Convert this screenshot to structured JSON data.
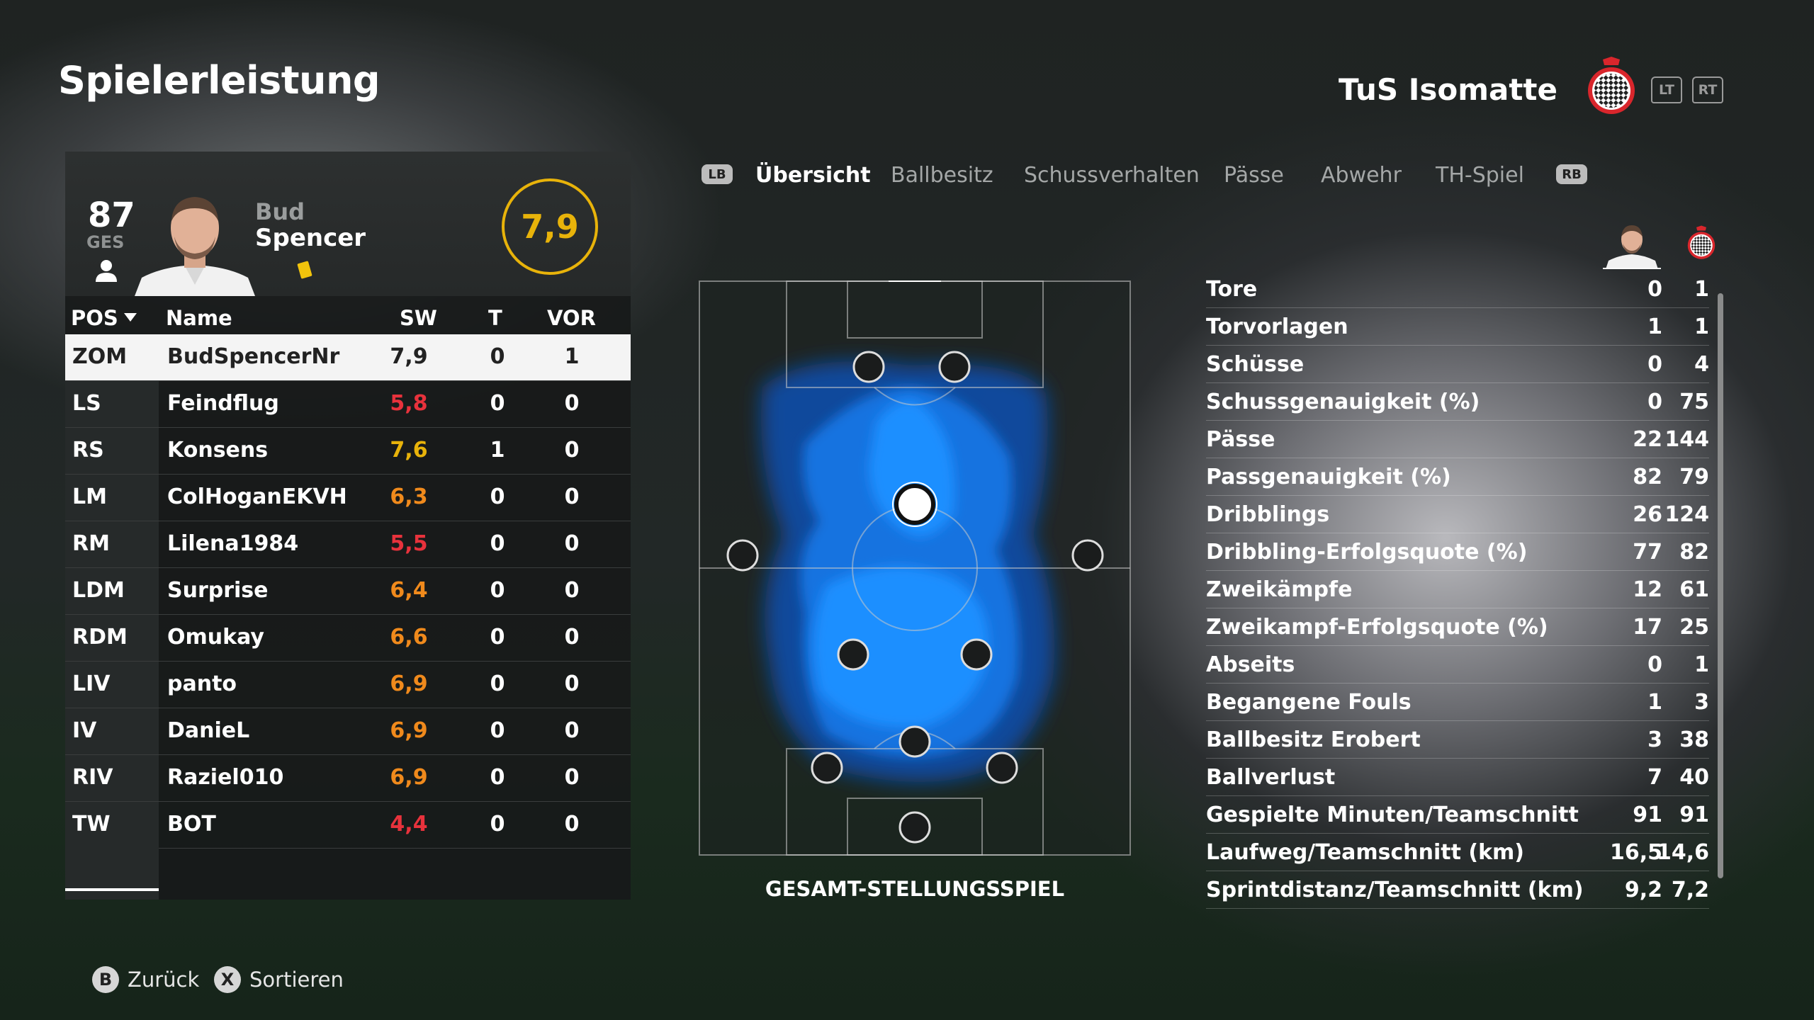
{
  "header": {
    "title": "Spielerleistung",
    "team_name": "TuS Isomatte",
    "lt": "LT",
    "rt": "RT"
  },
  "player_card": {
    "overall": "87",
    "overall_label": "GES",
    "first_name": "Bud",
    "last_name": "Spencer",
    "rating": "7,9"
  },
  "table": {
    "headers": {
      "pos": "POS",
      "name": "Name",
      "sw": "SW",
      "t": "T",
      "vor": "VOR"
    },
    "rows": [
      {
        "pos": "ZOM",
        "name": "BudSpencerNr",
        "sw": "7,9",
        "t": "0",
        "vor": "1",
        "sw_color": "#222222"
      },
      {
        "pos": "LS",
        "name": "Feindflug",
        "sw": "5,8",
        "t": "0",
        "vor": "0",
        "sw_color": "#e8323c"
      },
      {
        "pos": "RS",
        "name": "Konsens",
        "sw": "7,6",
        "t": "1",
        "vor": "0",
        "sw_color": "#e8b30a"
      },
      {
        "pos": "LM",
        "name": "ColHoganEKVH",
        "sw": "6,3",
        "t": "0",
        "vor": "0",
        "sw_color": "#f08a1c"
      },
      {
        "pos": "RM",
        "name": "Lilena1984",
        "sw": "5,5",
        "t": "0",
        "vor": "0",
        "sw_color": "#e8323c"
      },
      {
        "pos": "LDM",
        "name": "Surprise",
        "sw": "6,4",
        "t": "0",
        "vor": "0",
        "sw_color": "#f08a1c"
      },
      {
        "pos": "RDM",
        "name": "Omukay",
        "sw": "6,6",
        "t": "0",
        "vor": "0",
        "sw_color": "#f08a1c"
      },
      {
        "pos": "LIV",
        "name": "panto",
        "sw": "6,9",
        "t": "0",
        "vor": "0",
        "sw_color": "#f08a1c"
      },
      {
        "pos": "IV",
        "name": "DanieL",
        "sw": "6,9",
        "t": "0",
        "vor": "0",
        "sw_color": "#f08a1c"
      },
      {
        "pos": "RIV",
        "name": "Raziel010",
        "sw": "6,9",
        "t": "0",
        "vor": "0",
        "sw_color": "#f08a1c"
      },
      {
        "pos": "TW",
        "name": "BOT",
        "sw": "4,4",
        "t": "0",
        "vor": "0",
        "sw_color": "#e8323c"
      }
    ]
  },
  "tabs": {
    "lb": "LB",
    "rb": "RB",
    "items": [
      "Übersicht",
      "Ballbesitz",
      "Schussverhalten",
      "Pässe",
      "Abwehr",
      "TH-Spiel"
    ],
    "active": "Übersicht"
  },
  "pitch": {
    "label": "GESAMT-STELLUNGSSPIEL"
  },
  "stats": [
    {
      "label": "Tore",
      "player": "0",
      "team": "1"
    },
    {
      "label": "Torvorlagen",
      "player": "1",
      "team": "1"
    },
    {
      "label": "Schüsse",
      "player": "0",
      "team": "4"
    },
    {
      "label": "Schussgenauigkeit (%)",
      "player": "0",
      "team": "75"
    },
    {
      "label": "Pässe",
      "player": "22",
      "team": "144"
    },
    {
      "label": "Passgenauigkeit (%)",
      "player": "82",
      "team": "79"
    },
    {
      "label": "Dribblings",
      "player": "26",
      "team": "124"
    },
    {
      "label": "Dribbling-Erfolgsquote (%)",
      "player": "77",
      "team": "82"
    },
    {
      "label": "Zweikämpfe",
      "player": "12",
      "team": "61"
    },
    {
      "label": "Zweikampf-Erfolgsquote (%)",
      "player": "17",
      "team": "25"
    },
    {
      "label": "Abseits",
      "player": "0",
      "team": "1"
    },
    {
      "label": "Begangene Fouls",
      "player": "1",
      "team": "3"
    },
    {
      "label": "Ballbesitz Erobert",
      "player": "3",
      "team": "38"
    },
    {
      "label": "Ballverlust",
      "player": "7",
      "team": "40"
    },
    {
      "label": "Gespielte Minuten/Teamschnitt",
      "player": "91",
      "team": "91"
    },
    {
      "label": "Laufweg/Teamschnitt (km)",
      "player": "16,5",
      "team": "14,6"
    },
    {
      "label": "Sprintdistanz/Teamschnitt (km)",
      "player": "9,2",
      "team": "7,2"
    }
  ],
  "footer": {
    "back_key": "B",
    "back_label": "Zurück",
    "sort_key": "X",
    "sort_label": "Sortieren"
  },
  "colors": {
    "accent": "#e8b30a",
    "heat": "#1e8fff"
  },
  "icons": [
    "person-icon",
    "yellow-card-icon",
    "club-crest-icon"
  ]
}
